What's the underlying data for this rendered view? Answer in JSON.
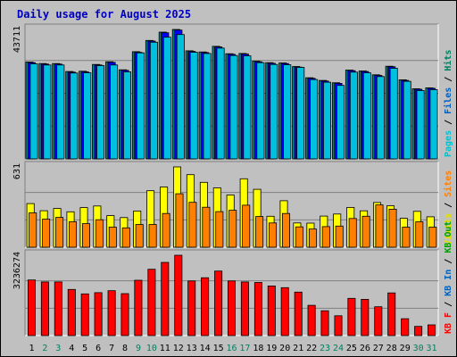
{
  "chart_data": {
    "title": "Daily usage for August 2025",
    "type": "bar",
    "categories": [
      "1",
      "2",
      "3",
      "4",
      "5",
      "6",
      "7",
      "8",
      "9",
      "10",
      "11",
      "12",
      "13",
      "14",
      "15",
      "16",
      "17",
      "18",
      "19",
      "20",
      "21",
      "22",
      "23",
      "24",
      "25",
      "26",
      "27",
      "28",
      "29",
      "30",
      "31"
    ],
    "weekend_days": [
      "2",
      "3",
      "9",
      "10",
      "16",
      "17",
      "23",
      "24",
      "30",
      "31"
    ],
    "panels": [
      {
        "axis_max_label": "43711",
        "ymax": 43711,
        "side_labels": [
          {
            "text": "Pages",
            "color": "#00c0d0"
          },
          {
            "text": "Files",
            "color": "#0060c0"
          },
          {
            "text": "Hits",
            "color": "#008060"
          }
        ],
        "series": [
          {
            "name": "Hits",
            "color": "#008080",
            "values": [
              32700,
              32200,
              32200,
              29500,
              29600,
              31900,
              32800,
              30100,
              36200,
              40000,
              42800,
              43700,
              36500,
              36100,
              38000,
              35500,
              35600,
              33000,
              32500,
              32400,
              31200,
              27400,
              26500,
              25700,
              30000,
              29700,
              28400,
              31300,
              26700,
              23700,
              24000
            ]
          },
          {
            "name": "Files",
            "color": "#0000ff",
            "values": [
              32500,
              32000,
              32000,
              29300,
              29400,
              31700,
              32600,
              29900,
              36000,
              39800,
              42600,
              43500,
              36300,
              35900,
              37800,
              35300,
              35400,
              32800,
              32300,
              32200,
              31000,
              27200,
              26300,
              25500,
              29800,
              29500,
              28200,
              31100,
              26500,
              23500,
              23800
            ]
          },
          {
            "name": "Pages",
            "color": "#00c0e0",
            "values": [
              32100,
              31700,
              31700,
              29000,
              29100,
              31500,
              31700,
              29400,
              35800,
              39400,
              41100,
              42000,
              36000,
              35600,
              37400,
              34900,
              34800,
              32500,
              31900,
              31800,
              30900,
              26800,
              25900,
              24800,
              29300,
              29100,
              27800,
              30600,
              26200,
              23100,
              23400
            ]
          }
        ]
      },
      {
        "axis_max_label": "631",
        "ymax": 631,
        "side_labels": [
          {
            "text": "Visits",
            "color": "#e0e000"
          },
          {
            "text": "Sites",
            "color": "#ff8000"
          }
        ],
        "series": [
          {
            "name": "Visits",
            "color": "#ffff00",
            "values": [
              343,
              287,
              304,
              278,
              311,
              324,
              248,
              233,
              285,
              444,
              473,
              631,
              570,
              510,
              466,
              410,
              538,
              455,
              243,
              365,
              191,
              189,
              245,
              261,
              313,
              286,
              351,
              325,
              227,
              282,
              239
            ]
          },
          {
            "name": "Sites",
            "color": "#ff8000",
            "values": [
              270,
              221,
              234,
              200,
              185,
              216,
              158,
              152,
              179,
              179,
              265,
              420,
              353,
              314,
              280,
              290,
              330,
              241,
              191,
              265,
              160,
              143,
              162,
              166,
              226,
              243,
              332,
              299,
              158,
              200,
              158
            ]
          }
        ]
      },
      {
        "axis_max_label": "3236274",
        "ymax": 3236274,
        "side_labels": [
          {
            "text": "KB F",
            "color": "#ff0000"
          },
          {
            "text": "KB In",
            "color": "#0060c0"
          },
          {
            "text": "KB Out",
            "color": "#00a000"
          }
        ],
        "series": [
          {
            "name": "KB F",
            "color": "#ff0000",
            "values": [
              2240000,
              2160000,
              2160000,
              1860000,
              1680000,
              1730000,
              1810000,
              1690000,
              2230000,
              2670000,
              2950000,
              3236274,
              2200000,
              2330000,
              2600000,
              2200000,
              2160000,
              2140000,
              2000000,
              1930000,
              1750000,
              1220000,
              1000000,
              800000,
              1500000,
              1460000,
              1160000,
              1720000,
              680000,
              370000,
              430000
            ]
          }
        ]
      }
    ]
  }
}
